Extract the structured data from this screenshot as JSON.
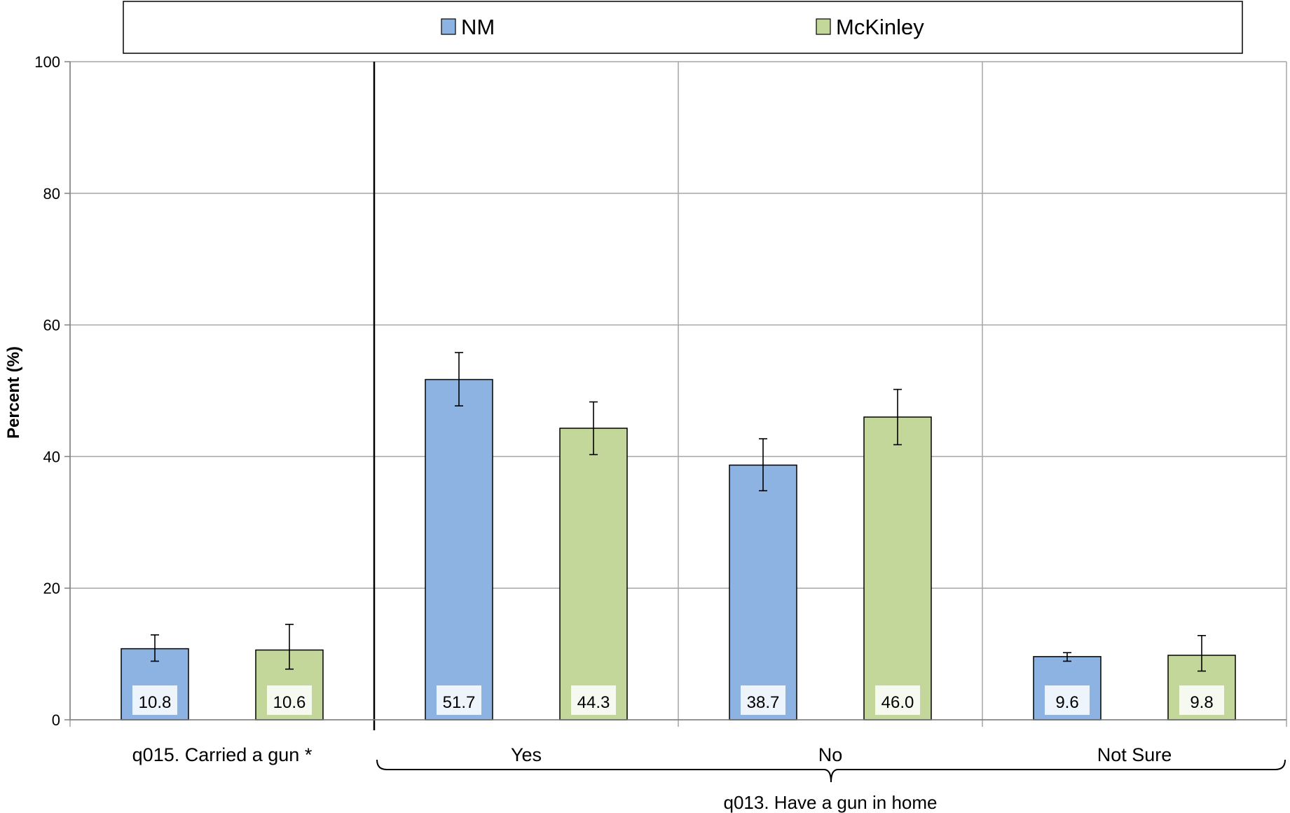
{
  "chart_data": {
    "type": "bar",
    "ylabel": "Percent (%)",
    "ylim": [
      0,
      100
    ],
    "yticks": [
      0,
      20,
      40,
      60,
      80,
      100
    ],
    "grid": true,
    "legend_position": "top",
    "categories": [
      "q015. Carried a gun *",
      "Yes",
      "No",
      "Not Sure"
    ],
    "group_label": "q013. Have a gun in home",
    "series": [
      {
        "name": "NM",
        "color": "#8db3e2",
        "values": [
          10.8,
          51.7,
          38.7,
          9.6
        ],
        "labels": [
          "10.8",
          "51.7",
          "38.7",
          "9.6"
        ],
        "error_low": [
          8.9,
          47.7,
          34.8,
          8.9
        ],
        "error_high": [
          12.9,
          55.8,
          42.7,
          10.2
        ]
      },
      {
        "name": "McKinley",
        "color": "#c4d79b",
        "values": [
          10.6,
          44.3,
          46.0,
          9.8
        ],
        "labels": [
          "10.6",
          "44.3",
          "46.0",
          "9.8"
        ],
        "error_low": [
          7.7,
          40.3,
          41.8,
          7.4
        ],
        "error_high": [
          14.5,
          48.3,
          50.2,
          12.8
        ]
      }
    ]
  }
}
